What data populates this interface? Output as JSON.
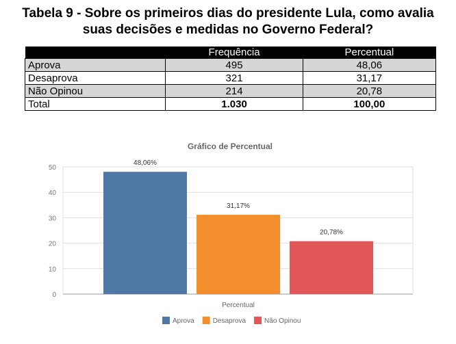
{
  "title": {
    "line1": "Tabela 9 - Sobre os primeiros dias do presidente Lula, como avalia",
    "line2": "suas decisões e medidas no Governo Federal?"
  },
  "table": {
    "headers": [
      "",
      "Frequência",
      "Percentual"
    ],
    "rows": [
      {
        "label": "Aprova",
        "freq": "495",
        "pct": "48,06"
      },
      {
        "label": "Desaprova",
        "freq": "321",
        "pct": "31,17"
      },
      {
        "label": "Não Opinou",
        "freq": "214",
        "pct": "20,78"
      }
    ],
    "total": {
      "label": "Total",
      "freq": "1.030",
      "pct": "100,00"
    }
  },
  "chart_data": {
    "type": "bar",
    "title": "Gráfico de Percentual",
    "xlabel": "Percentual",
    "ylabel": "",
    "ylim": [
      0,
      50
    ],
    "yticks": [
      0,
      10,
      20,
      30,
      40,
      50
    ],
    "grid": true,
    "legend": "bottom",
    "series": [
      {
        "name": "Aprova",
        "value": 48.06,
        "label": "48,06%",
        "color": "#4e79a7"
      },
      {
        "name": "Desaprova",
        "value": 31.17,
        "label": "31,17%",
        "color": "#f28e2b"
      },
      {
        "name": "Não Opinou",
        "value": 20.78,
        "label": "20,78%",
        "color": "#e15759"
      }
    ]
  }
}
